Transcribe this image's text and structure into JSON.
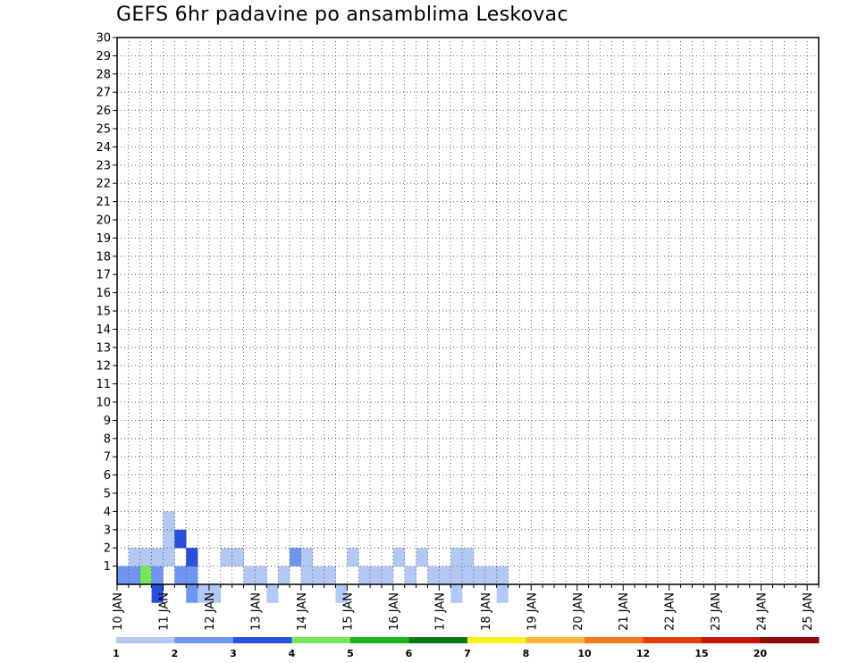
{
  "chart_data": {
    "type": "heatmap",
    "title": "GEFS 6hr padavine po ansamblima Leskovac",
    "xlabel": "",
    "ylabel": "",
    "x_ticks": [
      "10 JAN",
      "11 JAN",
      "12 JAN",
      "13 JAN",
      "14 JAN",
      "15 JAN",
      "16 JAN",
      "17 JAN",
      "18 JAN",
      "19 JAN",
      "20 JAN",
      "21 JAN",
      "22 JAN",
      "23 JAN",
      "24 JAN",
      "25 JAN"
    ],
    "y_ticks": [
      "1",
      "2",
      "3",
      "4",
      "5",
      "6",
      "7",
      "8",
      "9",
      "10",
      "11",
      "12",
      "13",
      "14",
      "15",
      "16",
      "17",
      "18",
      "19",
      "20",
      "21",
      "22",
      "23",
      "24",
      "25",
      "26",
      "27",
      "28",
      "29",
      "30"
    ],
    "x_range": [
      0,
      61
    ],
    "y_range": [
      0,
      30
    ],
    "grid": true,
    "legend_position": "bottom",
    "levels": [
      {
        "label": "1",
        "color": "#b4c8f5"
      },
      {
        "label": "2",
        "color": "#6e96f0"
      },
      {
        "label": "3",
        "color": "#2850dc"
      },
      {
        "label": "4",
        "color": "#78e65a"
      },
      {
        "label": "5",
        "color": "#1eb41e"
      },
      {
        "label": "6",
        "color": "#0a7814"
      },
      {
        "label": "7",
        "color": "#faf01e"
      },
      {
        "label": "8",
        "color": "#fab43c"
      },
      {
        "label": "10",
        "color": "#f5781e"
      },
      {
        "label": "12",
        "color": "#e63c0a"
      },
      {
        "label": "15",
        "color": "#c8140a"
      },
      {
        "label": "20",
        "color": "#8c0a0a"
      }
    ],
    "cells": [
      [
        0,
        1,
        2
      ],
      [
        1,
        1,
        2
      ],
      [
        1,
        2,
        1
      ],
      [
        2,
        2,
        1
      ],
      [
        2,
        1,
        4
      ],
      [
        3,
        0,
        3
      ],
      [
        3,
        1,
        2
      ],
      [
        3,
        2,
        1
      ],
      [
        4,
        2,
        1
      ],
      [
        4,
        3,
        1
      ],
      [
        4,
        4,
        1
      ],
      [
        5,
        3,
        3
      ],
      [
        5,
        1,
        2
      ],
      [
        6,
        0,
        2
      ],
      [
        6,
        1,
        2
      ],
      [
        6,
        2,
        3
      ],
      [
        7,
        0,
        1
      ],
      [
        8,
        0,
        1
      ],
      [
        9,
        2,
        1
      ],
      [
        10,
        2,
        1
      ],
      [
        11,
        1,
        1
      ],
      [
        12,
        1,
        1
      ],
      [
        13,
        0,
        1
      ],
      [
        14,
        1,
        1
      ],
      [
        15,
        2,
        2
      ],
      [
        16,
        1,
        1
      ],
      [
        16,
        2,
        1
      ],
      [
        17,
        1,
        1
      ],
      [
        18,
        1,
        1
      ],
      [
        19,
        0,
        1
      ],
      [
        20,
        2,
        1
      ],
      [
        21,
        1,
        1
      ],
      [
        22,
        1,
        1
      ],
      [
        23,
        1,
        1
      ],
      [
        24,
        2,
        1
      ],
      [
        25,
        1,
        1
      ],
      [
        26,
        2,
        1
      ],
      [
        27,
        1,
        1
      ],
      [
        28,
        1,
        1
      ],
      [
        29,
        0,
        1
      ],
      [
        29,
        1,
        1
      ],
      [
        29,
        2,
        1
      ],
      [
        30,
        2,
        1
      ],
      [
        30,
        1,
        1
      ],
      [
        31,
        1,
        1
      ],
      [
        32,
        1,
        1
      ],
      [
        33,
        0,
        1
      ],
      [
        33,
        1,
        1
      ]
    ],
    "cells_note": ""
  }
}
